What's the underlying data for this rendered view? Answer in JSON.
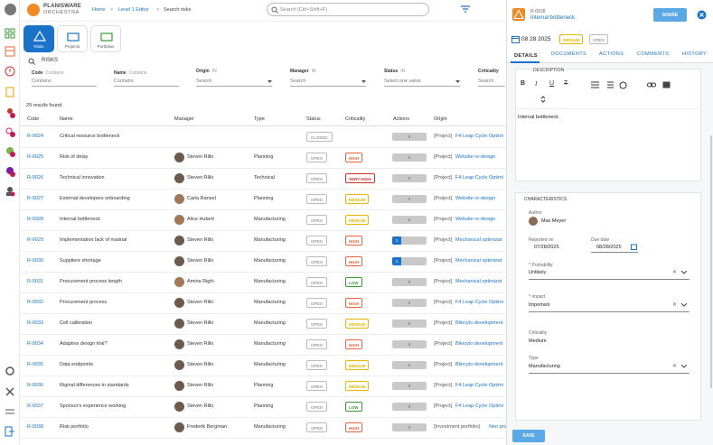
{
  "app": {
    "name": "PLANISWARE",
    "sub": "ORCHESTRA"
  },
  "breadcrumb": {
    "home": "Home",
    "sep1": ">",
    "level": "Level 1 Editor",
    "sep2": ">",
    "current": "Search risks"
  },
  "search": {
    "placeholder": "Search (Ctrl+Shift+F)"
  },
  "tabs": [
    {
      "label": "Risks"
    },
    {
      "label": "Projects"
    },
    {
      "label": "Portfolios"
    }
  ],
  "risks_header": "RISKS",
  "filters": {
    "code": {
      "label": "Code",
      "op": "Contains",
      "placeholder": "Contains"
    },
    "name": {
      "label": "Name",
      "op": "Contains",
      "placeholder": "Contains"
    },
    "origin": {
      "label": "Origin",
      "op": "IN",
      "placeholder": "Search"
    },
    "manager": {
      "label": "Manager",
      "op": "IN",
      "placeholder": "Search"
    },
    "status": {
      "label": "Status",
      "op": "IN",
      "placeholder": "Select one value"
    },
    "criticality": {
      "label": "Criticality",
      "op": "IN",
      "placeholder": "Search"
    }
  },
  "results": "29 results found.",
  "columns": [
    "Code",
    "Name",
    "Manager",
    "Type",
    "Status",
    "Criticality",
    "Actions",
    "Origin"
  ],
  "rows": [
    {
      "code": "R-0024",
      "name": "Critical resource bottleneck",
      "manager": "",
      "type": "",
      "status": "CLOSED",
      "crit": "",
      "crit_color": "",
      "actions": "0",
      "origin_prefix": "[Project]",
      "origin": "F4 Leap Cycle Optimi",
      "avatar": ""
    },
    {
      "code": "R-0025",
      "name": "Risk of delay",
      "manager": "Steven Rillo",
      "type": "Planning",
      "status": "OPEN",
      "crit": "HIGH",
      "crit_color": "#e8663d",
      "actions": "0",
      "origin_prefix": "[Project]",
      "origin": "Website re-design",
      "avatar": "m"
    },
    {
      "code": "R-0026",
      "name": "Technical innovation",
      "manager": "Steven Rillo",
      "type": "Technical",
      "status": "OPEN",
      "crit": "VERY HIGH",
      "crit_color": "#d32f2f",
      "actions": "0",
      "origin_prefix": "[Project]",
      "origin": "F4 Leap Cycle Optimi",
      "avatar": "m"
    },
    {
      "code": "R-0027",
      "name": "External developers onboarding",
      "manager": "Carla Ransol",
      "type": "Planning",
      "status": "OPEN",
      "crit": "MEDIUM",
      "crit_color": "#e6b800",
      "actions": "0",
      "origin_prefix": "[Project]",
      "origin": "Website re-design",
      "avatar": "f"
    },
    {
      "code": "R-0028",
      "name": "Internal bottleneck",
      "manager": "Alice Hubert",
      "type": "Manufacturing",
      "status": "OPEN",
      "crit": "MEDIUM",
      "crit_color": "#e6b800",
      "actions": "0",
      "origin_prefix": "[Project]",
      "origin": "Website re-design",
      "avatar": "f"
    },
    {
      "code": "R-0029",
      "name": "Implementation lack of matirial",
      "manager": "Steven Rillo",
      "type": "Manufacturing",
      "status": "OPEN",
      "crit": "HIGH",
      "crit_color": "#e8663d",
      "actions": "1",
      "origin_prefix": "[Project]",
      "origin": "Mechanical optimizat",
      "avatar": "m"
    },
    {
      "code": "R-0030",
      "name": "Suppliers shortage",
      "manager": "Steven Rillo",
      "type": "Manufacturing",
      "status": "OPEN",
      "crit": "HIGH",
      "crit_color": "#e8663d",
      "actions": "1",
      "origin_prefix": "[Project]",
      "origin": "Mechanical optimizat",
      "avatar": "m"
    },
    {
      "code": "R-0031",
      "name": "Procurement process length",
      "manager": "Amina Righi",
      "type": "Manufacturing",
      "status": "OPEN",
      "crit": "LOW",
      "crit_color": "#3a9a3a",
      "actions": "0",
      "origin_prefix": "[Project]",
      "origin": "Mechanical optimizat",
      "avatar": "f"
    },
    {
      "code": "R-0032",
      "name": "Procurement process",
      "manager": "Steven Rillo",
      "type": "Manufacturing",
      "status": "OPEN",
      "crit": "HIGH",
      "crit_color": "#e8663d",
      "actions": "0",
      "origin_prefix": "[Project]",
      "origin": "F4 Leap Cycle Optimi",
      "avatar": "m"
    },
    {
      "code": "R-0033",
      "name": "Cell calibration",
      "manager": "Steven Rillo",
      "type": "Manufacturing",
      "status": "OPEN",
      "crit": "MEDIUM",
      "crit_color": "#e6b800",
      "actions": "0",
      "origin_prefix": "[Project]",
      "origin": "Blincyto development",
      "avatar": "m"
    },
    {
      "code": "R-0034",
      "name": "Adaptive design trial?",
      "manager": "Steven Rillo",
      "type": "Manufacturing",
      "status": "OPEN",
      "crit": "HIGH",
      "crit_color": "#e8663d",
      "actions": "0",
      "origin_prefix": "[Project]",
      "origin": "Blincyto development",
      "avatar": "m"
    },
    {
      "code": "R-0035",
      "name": "Data endpoints",
      "manager": "Steven Rillo",
      "type": "Manufacturing",
      "status": "OPEN",
      "crit": "MEDIUM",
      "crit_color": "#e6b800",
      "actions": "0",
      "origin_prefix": "[Project]",
      "origin": "Blincyto development",
      "avatar": "m"
    },
    {
      "code": "R-0036",
      "name": "Riginal differences in standards",
      "manager": "Steven Rillo",
      "type": "Planning",
      "status": "OPEN",
      "crit": "MEDIUM",
      "crit_color": "#e6b800",
      "actions": "0",
      "origin_prefix": "[Project]",
      "origin": "F4 Leap Cycle Optimi",
      "avatar": "m"
    },
    {
      "code": "R-0037",
      "name": "Sponsor's experience working",
      "manager": "Steven Rillo",
      "type": "Planning",
      "status": "OPEN",
      "crit": "LOW",
      "crit_color": "#3a9a3a",
      "actions": "0",
      "origin_prefix": "[Project]",
      "origin": "F4 Leap Cycle Optimi",
      "avatar": "m"
    },
    {
      "code": "R-0038",
      "name": "Risk portfolio",
      "manager": "Frederik Bergman",
      "type": "Manufacturing",
      "status": "OPEN",
      "crit": "HIGH",
      "crit_color": "#e8663d",
      "actions": "0",
      "origin_prefix": "[Investment portfolio]",
      "origin": "Neo pro",
      "avatar": "m"
    }
  ],
  "panel": {
    "code": "R-0028",
    "title": "Internal bottleneck",
    "share": "SHARE",
    "date": "08 28 2025",
    "crit": "MEDIUM",
    "status": "OPEN",
    "tabs": [
      "DETAILS",
      "DOCUMENTS",
      "ACTIONS",
      "COMMENTS",
      "HISTORY"
    ],
    "description_label": "DESCRIPTION",
    "description": "Internal bottleneck",
    "characteristics": "CHARACTERISTICS",
    "author_label": "Author",
    "author": "Max Meyer",
    "reported_label": "Reported on",
    "reported": "07/28/2025",
    "due_label": "Due date",
    "due": "08/28/2025",
    "prob_label": "* Probability",
    "prob": "Unlikely",
    "impact_label": "* Impact",
    "impact": "Important",
    "crit_label": "Criticality",
    "crit_val": "Medium",
    "type_label": "Type",
    "type": "Manufacturing",
    "save": "SAVE"
  },
  "colors": {
    "accent": "#1a73c9",
    "brand": "#f08a24"
  }
}
